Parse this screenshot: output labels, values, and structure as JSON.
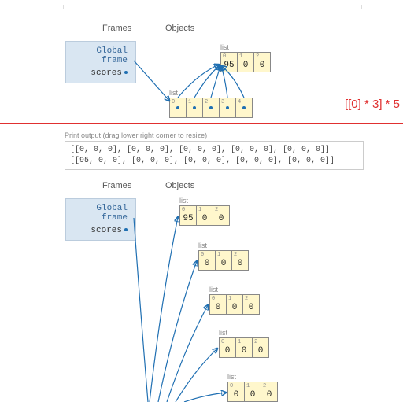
{
  "colors": {
    "background": "#ffffff",
    "frame_bg": "#d9e6f2",
    "frame_border": "#bbccdd",
    "frame_text": "#336699",
    "cell_bg": "#fff7cc",
    "cell_border": "#888888",
    "cell_idx": "#888888",
    "cell_val": "#222222",
    "arrow": "#1f6fb2",
    "divider": "#e03030",
    "annotation": "#e03030",
    "header_text": "#555555",
    "caption_text": "#888888",
    "output_text": "#444444",
    "output_border": "#cccccc"
  },
  "upper": {
    "headers": {
      "frames": "Frames",
      "objects": "Objects"
    },
    "global_frame": {
      "title": "Global frame",
      "var": "scores"
    },
    "inner_list": {
      "label": "list",
      "cells": [
        {
          "idx": "0",
          "val": "95"
        },
        {
          "idx": "1",
          "val": "0"
        },
        {
          "idx": "2",
          "val": "0"
        }
      ]
    },
    "outer_list": {
      "label": "list",
      "cells": [
        {
          "idx": "0"
        },
        {
          "idx": "1"
        },
        {
          "idx": "2"
        },
        {
          "idx": "3"
        },
        {
          "idx": "4"
        }
      ]
    },
    "annotation": "[[0] * 3] * 5"
  },
  "lower": {
    "print_caption": "Print output (drag lower right corner to resize)",
    "print_line1": "[[0, 0, 0], [0, 0, 0], [0, 0, 0], [0, 0, 0], [0, 0, 0]]",
    "print_line2": "[[95, 0, 0], [0, 0, 0], [0, 0, 0], [0, 0, 0], [0, 0, 0]]",
    "headers": {
      "frames": "Frames",
      "objects": "Objects"
    },
    "global_frame": {
      "title": "Global frame",
      "var": "scores"
    },
    "lists": [
      {
        "label": "list",
        "cells": [
          {
            "idx": "0",
            "val": "95"
          },
          {
            "idx": "1",
            "val": "0"
          },
          {
            "idx": "2",
            "val": "0"
          }
        ]
      },
      {
        "label": "list",
        "cells": [
          {
            "idx": "0",
            "val": "0"
          },
          {
            "idx": "1",
            "val": "0"
          },
          {
            "idx": "2",
            "val": "0"
          }
        ]
      },
      {
        "label": "list",
        "cells": [
          {
            "idx": "0",
            "val": "0"
          },
          {
            "idx": "1",
            "val": "0"
          },
          {
            "idx": "2",
            "val": "0"
          }
        ]
      },
      {
        "label": "list",
        "cells": [
          {
            "idx": "0",
            "val": "0"
          },
          {
            "idx": "1",
            "val": "0"
          },
          {
            "idx": "2",
            "val": "0"
          }
        ]
      },
      {
        "label": "list",
        "cells": [
          {
            "idx": "0",
            "val": "0"
          },
          {
            "idx": "1",
            "val": "0"
          },
          {
            "idx": "2",
            "val": "0"
          }
        ]
      }
    ]
  }
}
